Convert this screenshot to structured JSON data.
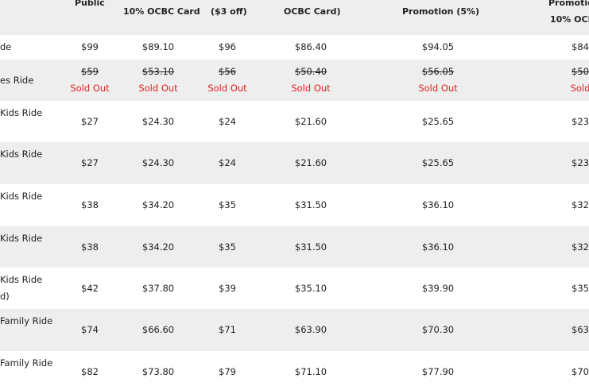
{
  "headers": {
    "c1": "Public",
    "c2": "10% OCBC Card",
    "c3": "($3 off)",
    "c4": "OCBC Card)",
    "c5": "Promotion (5%)",
    "c6a": "Promotio",
    "c6b": "10% OCB"
  },
  "rows": [
    {
      "name": "de",
      "name2": "",
      "v": [
        "$99",
        "$89.10",
        "$96",
        "$86.40",
        "$94.05",
        "$84"
      ],
      "sold": false
    },
    {
      "name": "es Ride",
      "name2": "",
      "v": [
        "$59",
        "$53.10",
        "$56",
        "$50.40",
        "$56.05",
        "$50"
      ],
      "sold": true,
      "sold_label": "Sold Out",
      "sold_last": "Sold"
    },
    {
      "name": "Kids Ride",
      "name2": "",
      "v": [
        "$27",
        "$24.30",
        "$24",
        "$21.60",
        "$25.65",
        "$23"
      ],
      "sold": false
    },
    {
      "name": "Kids Ride",
      "name2": "",
      "v": [
        "$27",
        "$24.30",
        "$24",
        "$21.60",
        "$25.65",
        "$23"
      ],
      "sold": false
    },
    {
      "name": "Kids Ride",
      "name2": "",
      "v": [
        "$38",
        "$34.20",
        "$35",
        "$31.50",
        "$36.10",
        "$32"
      ],
      "sold": false
    },
    {
      "name": "Kids Ride",
      "name2": "",
      "v": [
        "$38",
        "$34.20",
        "$35",
        "$31.50",
        "$36.10",
        "$32"
      ],
      "sold": false
    },
    {
      "name": "Kids Ride",
      "name2": "d)",
      "v": [
        "$42",
        "$37.80",
        "$39",
        "$35.10",
        "$39.90",
        "$35"
      ],
      "sold": false
    },
    {
      "name": "Family Ride",
      "name2": "",
      "v": [
        "$74",
        "$66.60",
        "$71",
        "$63.90",
        "$70.30",
        "$63"
      ],
      "sold": false
    },
    {
      "name": "Family Ride",
      "name2": "",
      "v": [
        "$82",
        "$73.80",
        "$79",
        "$71.10",
        "$77.90",
        "$70"
      ],
      "sold": false
    }
  ]
}
